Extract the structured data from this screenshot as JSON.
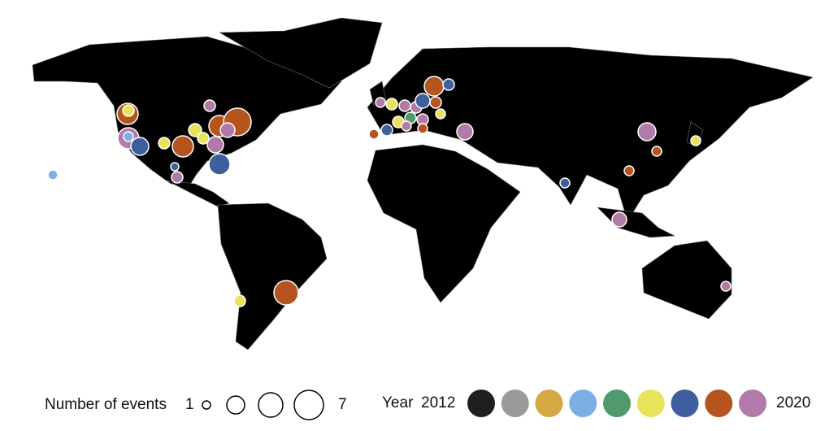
{
  "legend": {
    "size_title": "Number of events",
    "size_min": "1",
    "size_max": "7",
    "year_title": "Year",
    "year_start": "2012",
    "year_end": "2020",
    "year_colors": [
      "#1e1e1e",
      "#9a9a9a",
      "#d6a843",
      "#7eaee6",
      "#4f9a6e",
      "#e8e35a",
      "#3e5f9e",
      "#b5541e",
      "#b27aa8"
    ]
  }
}
